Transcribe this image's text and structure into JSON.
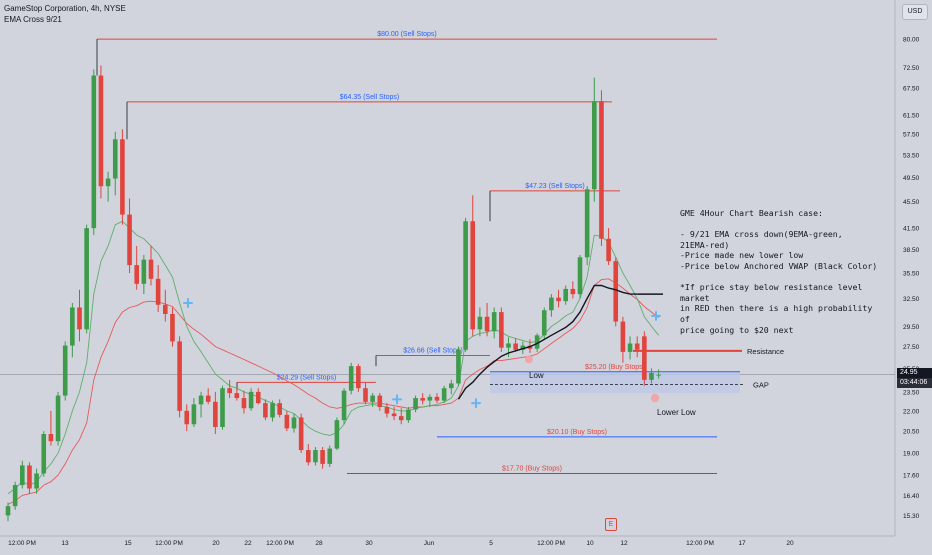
{
  "header": {
    "title": "GameStop Corporation, 4h, NYSE",
    "indicator": "EMA Cross 9/21"
  },
  "currency": "USD",
  "price_tag": {
    "value": "24.95",
    "countdown": "03:44:06"
  },
  "note": "GME 4Hour Chart Bearish case:\n\n- 9/21 EMA cross down(9EMA-green,\n21EMA-red)\n-Price made new lower low\n-Price below Anchored VWAP (Black Color)\n\n*If price stay below resistance level market\nin RED then there is a high probability of\nprice going to $20 next",
  "earnings_badge": "E",
  "colors": {
    "up": "#3d9b4a",
    "down": "#e0443d",
    "ema9": "#5fae6b",
    "ema21": "#e8585a",
    "vwap": "#131722",
    "sell_line": "#e0443d",
    "buy_line": "#2962ff",
    "label_blue": "#2962ff",
    "label_red": "#e0443d",
    "zone": "#bcc8e6"
  },
  "chart_data": {
    "type": "candlestick",
    "y_ticks": [
      15.3,
      16.4,
      17.6,
      19.0,
      20.5,
      22.0,
      23.5,
      25.5,
      27.5,
      29.5,
      32.5,
      35.5,
      38.5,
      41.5,
      45.5,
      49.5,
      53.5,
      57.5,
      61.5,
      67.5,
      72.5,
      80.0
    ],
    "ylim": [
      14.8,
      85.5
    ],
    "x_ticks": [
      "12:00 PM",
      "13",
      "15",
      "12:00 PM",
      "20",
      "22",
      "12:00 PM",
      "28",
      "30",
      "Jun",
      "5",
      "12:00 PM",
      "10",
      "12",
      "12:00 PM",
      "17",
      "20"
    ],
    "candles": [
      [
        15.3,
        16.0,
        15.0,
        15.8
      ],
      [
        15.8,
        17.2,
        15.6,
        17.0
      ],
      [
        17.0,
        18.5,
        16.8,
        18.2
      ],
      [
        18.2,
        18.4,
        16.5,
        16.8
      ],
      [
        16.8,
        18.0,
        16.5,
        17.7
      ],
      [
        17.7,
        20.5,
        17.5,
        20.3
      ],
      [
        20.3,
        22.0,
        19.5,
        19.8
      ],
      [
        19.8,
        23.5,
        19.5,
        23.2
      ],
      [
        23.2,
        28.0,
        22.8,
        27.6
      ],
      [
        27.6,
        32.0,
        26.5,
        31.5
      ],
      [
        31.5,
        33.5,
        28.0,
        29.2
      ],
      [
        29.2,
        42.0,
        28.8,
        41.5
      ],
      [
        41.5,
        72.0,
        40.5,
        70.5
      ],
      [
        70.5,
        73.0,
        46.0,
        48.0
      ],
      [
        48.0,
        50.5,
        45.5,
        49.3
      ],
      [
        49.3,
        58.0,
        46.5,
        56.5
      ],
      [
        56.5,
        58.5,
        42.0,
        43.5
      ],
      [
        43.5,
        46.0,
        35.5,
        36.5
      ],
      [
        36.5,
        39.0,
        33.5,
        34.2
      ],
      [
        34.2,
        37.8,
        33.0,
        37.2
      ],
      [
        37.2,
        39.0,
        34.0,
        34.8
      ],
      [
        34.8,
        36.5,
        31.0,
        31.8
      ],
      [
        31.8,
        33.5,
        30.0,
        30.8
      ],
      [
        30.8,
        31.5,
        27.5,
        28.0
      ],
      [
        28.0,
        28.5,
        21.5,
        22.0
      ],
      [
        22.0,
        22.5,
        20.5,
        21.0
      ],
      [
        21.0,
        23.0,
        20.8,
        22.5
      ],
      [
        22.5,
        23.5,
        21.5,
        23.2
      ],
      [
        23.2,
        23.8,
        22.5,
        22.7
      ],
      [
        22.7,
        23.5,
        20.3,
        20.8
      ],
      [
        20.8,
        24.0,
        20.6,
        23.8
      ],
      [
        23.8,
        24.5,
        23.0,
        23.4
      ],
      [
        23.4,
        23.8,
        22.8,
        23.0
      ],
      [
        23.0,
        23.6,
        21.8,
        22.2
      ],
      [
        22.2,
        23.8,
        22.0,
        23.5
      ],
      [
        23.5,
        23.8,
        22.5,
        22.6
      ],
      [
        22.6,
        22.9,
        21.3,
        21.5
      ],
      [
        21.5,
        22.8,
        21.2,
        22.6
      ],
      [
        22.6,
        22.9,
        21.5,
        21.7
      ],
      [
        21.7,
        22.0,
        20.5,
        20.7
      ],
      [
        20.7,
        21.8,
        20.4,
        21.5
      ],
      [
        21.5,
        21.8,
        19.0,
        19.2
      ],
      [
        19.2,
        19.6,
        18.2,
        18.4
      ],
      [
        18.4,
        19.4,
        18.2,
        19.2
      ],
      [
        19.2,
        19.4,
        18.0,
        18.3
      ],
      [
        18.3,
        19.5,
        18.1,
        19.3
      ],
      [
        19.3,
        21.5,
        19.2,
        21.3
      ],
      [
        21.3,
        23.8,
        21.0,
        23.6
      ],
      [
        23.6,
        26.0,
        23.3,
        25.7
      ],
      [
        25.7,
        25.9,
        23.5,
        23.8
      ],
      [
        23.8,
        24.3,
        22.5,
        22.7
      ],
      [
        22.7,
        23.4,
        22.3,
        23.2
      ],
      [
        23.2,
        23.4,
        22.0,
        22.3
      ],
      [
        22.3,
        22.6,
        21.5,
        21.8
      ],
      [
        21.8,
        22.3,
        21.3,
        21.6
      ],
      [
        21.6,
        22.2,
        21.0,
        21.3
      ],
      [
        21.3,
        22.3,
        21.1,
        22.1
      ],
      [
        22.1,
        23.2,
        21.9,
        23.0
      ],
      [
        23.0,
        23.4,
        22.5,
        22.8
      ],
      [
        22.8,
        23.3,
        22.3,
        23.1
      ],
      [
        23.1,
        23.4,
        22.6,
        22.8
      ],
      [
        22.8,
        24.0,
        22.6,
        23.8
      ],
      [
        23.8,
        24.5,
        23.3,
        24.2
      ],
      [
        24.2,
        27.5,
        24.0,
        27.2
      ],
      [
        27.2,
        43.0,
        27.0,
        42.5
      ],
      [
        42.5,
        46.5,
        28.5,
        29.2
      ],
      [
        29.2,
        31.5,
        28.5,
        30.5
      ],
      [
        30.5,
        32.0,
        28.5,
        29.0
      ],
      [
        29.0,
        31.5,
        28.3,
        31.0
      ],
      [
        31.0,
        31.5,
        27.0,
        27.4
      ],
      [
        27.4,
        28.4,
        26.5,
        27.8
      ],
      [
        27.8,
        28.3,
        27.0,
        27.2
      ],
      [
        27.2,
        28.0,
        26.8,
        27.6
      ],
      [
        27.6,
        28.2,
        26.9,
        27.3
      ],
      [
        27.3,
        28.8,
        27.0,
        28.6
      ],
      [
        28.6,
        31.5,
        28.3,
        31.2
      ],
      [
        31.2,
        33.0,
        30.5,
        32.6
      ],
      [
        32.6,
        33.5,
        31.5,
        32.2
      ],
      [
        32.2,
        34.0,
        31.8,
        33.6
      ],
      [
        33.6,
        34.5,
        32.5,
        33.0
      ],
      [
        33.0,
        37.8,
        32.5,
        37.5
      ],
      [
        37.5,
        48.0,
        36.5,
        47.5
      ],
      [
        47.5,
        70.0,
        45.5,
        64.5
      ],
      [
        64.5,
        67.0,
        39.0,
        40.0
      ],
      [
        40.0,
        41.5,
        36.5,
        37.0
      ],
      [
        37.0,
        37.5,
        29.5,
        30.0
      ],
      [
        30.0,
        30.5,
        26.0,
        27.0
      ],
      [
        27.0,
        28.5,
        26.3,
        27.8
      ],
      [
        27.8,
        28.5,
        26.5,
        27.2
      ],
      [
        28.5,
        29.0,
        24.0,
        24.5
      ],
      [
        24.5,
        25.5,
        24.2,
        25.1
      ],
      [
        24.9,
        25.4,
        24.6,
        24.95
      ]
    ],
    "ema9": [
      16.5,
      16.8,
      17.2,
      17.0,
      17.2,
      17.8,
      18.3,
      19.0,
      20.3,
      22.0,
      23.5,
      26.0,
      33.0,
      37.0,
      39.0,
      42.0,
      42.5,
      41.5,
      40.5,
      40.0,
      39.0,
      38.0,
      36.5,
      35.0,
      32.0,
      29.5,
      28.0,
      27.0,
      26.0,
      25.0,
      24.5,
      24.0,
      23.8,
      23.5,
      23.3,
      23.1,
      22.8,
      22.6,
      22.3,
      22.0,
      21.8,
      21.3,
      20.8,
      20.5,
      20.3,
      20.2,
      20.4,
      21.0,
      22.0,
      22.3,
      22.4,
      22.5,
      22.4,
      22.3,
      22.1,
      22.0,
      22.0,
      22.2,
      22.3,
      22.4,
      22.5,
      22.7,
      23.0,
      24.0,
      28.0,
      28.5,
      28.8,
      28.9,
      29.2,
      28.9,
      28.5,
      28.3,
      28.1,
      27.9,
      28.0,
      28.7,
      29.5,
      30.0,
      30.6,
      31.0,
      32.5,
      35.0,
      40.5,
      40.3,
      39.5,
      37.5,
      35.5,
      34.0,
      32.5,
      30.5,
      29.5,
      28.6
    ],
    "ema21": [
      15.9,
      16.1,
      16.4,
      16.5,
      16.6,
      17.0,
      17.2,
      17.6,
      18.3,
      19.2,
      19.9,
      21.1,
      24.5,
      26.5,
      28.0,
      29.9,
      31.0,
      31.5,
      31.7,
      32.1,
      32.2,
      32.1,
      31.9,
      31.6,
      30.7,
      29.8,
      29.2,
      28.7,
      28.1,
      27.5,
      27.2,
      26.9,
      26.6,
      26.3,
      26.0,
      25.7,
      25.4,
      25.1,
      24.8,
      24.4,
      24.1,
      23.7,
      23.3,
      23.0,
      22.6,
      22.3,
      22.2,
      22.3,
      22.5,
      22.6,
      22.6,
      22.6,
      22.6,
      22.5,
      22.4,
      22.3,
      22.2,
      22.3,
      22.3,
      22.4,
      22.4,
      22.5,
      22.6,
      23.0,
      24.5,
      25.0,
      25.4,
      25.7,
      26.2,
      26.2,
      26.3,
      26.4,
      26.5,
      26.6,
      26.8,
      27.3,
      27.8,
      28.3,
      28.8,
      29.3,
      30.1,
      31.5,
      34.0,
      34.7,
      34.8,
      34.3,
      33.7,
      33.0,
      32.4,
      31.6,
      31.0,
      30.4
    ],
    "vwap_start": 63,
    "vwap": [
      22.9,
      23.8,
      24.3,
      25.0,
      25.6,
      26.1,
      26.6,
      26.9,
      27.1,
      27.3,
      27.5,
      27.8,
      28.2,
      28.6,
      29.0,
      29.4,
      30.0,
      31.0,
      32.5,
      34.0,
      34.0,
      33.7,
      33.5,
      33.2,
      33.0,
      33.0
    ],
    "vwap_extra": [
      33.0
    ],
    "levels": [
      {
        "label": "$80.00 (Sell Stops)",
        "price": 80.0,
        "x0": 97,
        "x1": 717,
        "kind": "sell",
        "drop_to": 70.5
      },
      {
        "label": "$64.35 (Sell Stops)",
        "price": 64.35,
        "x0": 127,
        "x1": 612,
        "kind": "sell",
        "drop_to": 56.5
      },
      {
        "label": "$47.23 (Sell Stops)",
        "price": 47.23,
        "x0": 490,
        "x1": 620,
        "kind": "sell",
        "drop_to": 42.5
      },
      {
        "label": "$26.66 (Sell Stops)",
        "price": 26.66,
        "x0": 376,
        "x1": 490,
        "kind": "sell",
        "drop_to": 25.7
      },
      {
        "label": "$24.29 (Sell Stops)",
        "price": 24.29,
        "x0": 237,
        "x1": 376,
        "kind": "sell",
        "drop_to": 23.6
      },
      {
        "label": "$25.20 (Buy Stops)",
        "price": 25.2,
        "x0": 490,
        "x1": 740,
        "kind": "buy"
      },
      {
        "label": "$20.10 (Buy Stops)",
        "price": 20.1,
        "x0": 437,
        "x1": 717,
        "kind": "buy"
      },
      {
        "label": "$17.70 (Buy Stops)",
        "price": 17.7,
        "x0": 347,
        "x1": 717,
        "kind": "buy"
      }
    ],
    "annotations": {
      "resistance": {
        "label": "Resistance",
        "price": 27.1
      },
      "gap": {
        "label": "GAP",
        "price": 24.1
      },
      "low": {
        "label": "Low",
        "price": 25.0
      },
      "lower_low": {
        "label": "Lower Low",
        "price": 23.2
      }
    }
  }
}
